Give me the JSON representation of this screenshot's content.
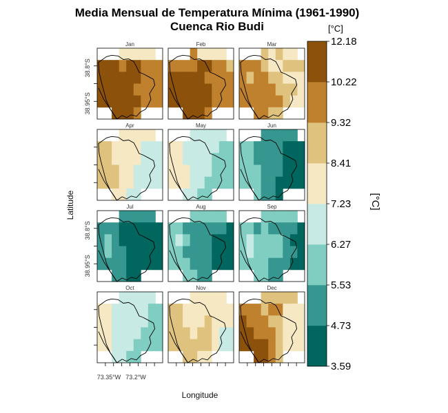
{
  "chart_data": {
    "type": "heatmap",
    "title_line1": "Media Mensual de Temperatura Mínima (1961-1990)",
    "title_line2": "Cuenca Rio Budi",
    "xlabel": "Longitude",
    "ylabel": "Latitude",
    "x_tick_labels": [
      "73.35°W",
      "73.2°W"
    ],
    "y_tick_labels": [
      "38.8°S",
      "38.95°S"
    ],
    "colorbar": {
      "unit": "[°C]",
      "label": "[°C]",
      "breaks": [
        3.59,
        4.73,
        5.53,
        6.27,
        7.23,
        8.41,
        9.32,
        10.22,
        12.18
      ],
      "colors": [
        "#01665e",
        "#35978f",
        "#80cdc1",
        "#c7eae5",
        "#f6e8c3",
        "#dfc27d",
        "#bf812d",
        "#8c510a"
      ]
    },
    "panels": [
      {
        "month": "Jan",
        "grid": [
          "...44444",
          "777677666",
          "777777666",
          "777776666",
          "777777666",
          "..7776..."
        ]
      },
      {
        "month": "Feb",
        "grid": [
          "...64444",
          "666677665",
          "777776666",
          "777777666",
          "777777666",
          "..7776..."
        ]
      },
      {
        "month": "Mar",
        "grid": [
          "...54544",
          "666544555",
          "656655444",
          "666665554",
          "666666544",
          "..6655..."
        ]
      },
      {
        "month": "Apr",
        "grid": [
          "...44444",
          "554444333",
          "554444333",
          "555443333",
          "555443333",
          "..4433..."
        ]
      },
      {
        "month": "May",
        "grid": [
          "...33333",
          "443333322",
          "443333222",
          "444333222",
          "444332222",
          "..3322..."
        ]
      },
      {
        "month": "Jun",
        "grid": [
          "...11111",
          "221111000",
          "221111000",
          "222111000",
          "222110000",
          "..2110..."
        ]
      },
      {
        "month": "Jul",
        "grid": [
          "...11111",
          "111000000",
          "121000000",
          "121100000",
          "111100000",
          "..1100..."
        ]
      },
      {
        "month": "Aug",
        "grid": [
          "...22222",
          "221111110",
          "232111000",
          "221111000",
          "222111000",
          "..2211..."
        ]
      },
      {
        "month": "Sep",
        "grid": [
          "...22222",
          "221211110",
          "232222100",
          "232222110",
          "222211100",
          "..2211..."
        ]
      },
      {
        "month": "Oct",
        "grid": [
          "...33333",
          "443333322",
          "443333322",
          "443333222",
          "443332222",
          "..3322..."
        ]
      },
      {
        "month": "Nov",
        "grid": [
          "...44444",
          "554444444",
          "554445444",
          "555455433",
          "555555433",
          "..5544..."
        ]
      },
      {
        "month": "Dec",
        "grid": [
          "...55555",
          "666566444",
          "766655444",
          "776665444",
          "777765444",
          "..7765..."
        ]
      }
    ]
  }
}
